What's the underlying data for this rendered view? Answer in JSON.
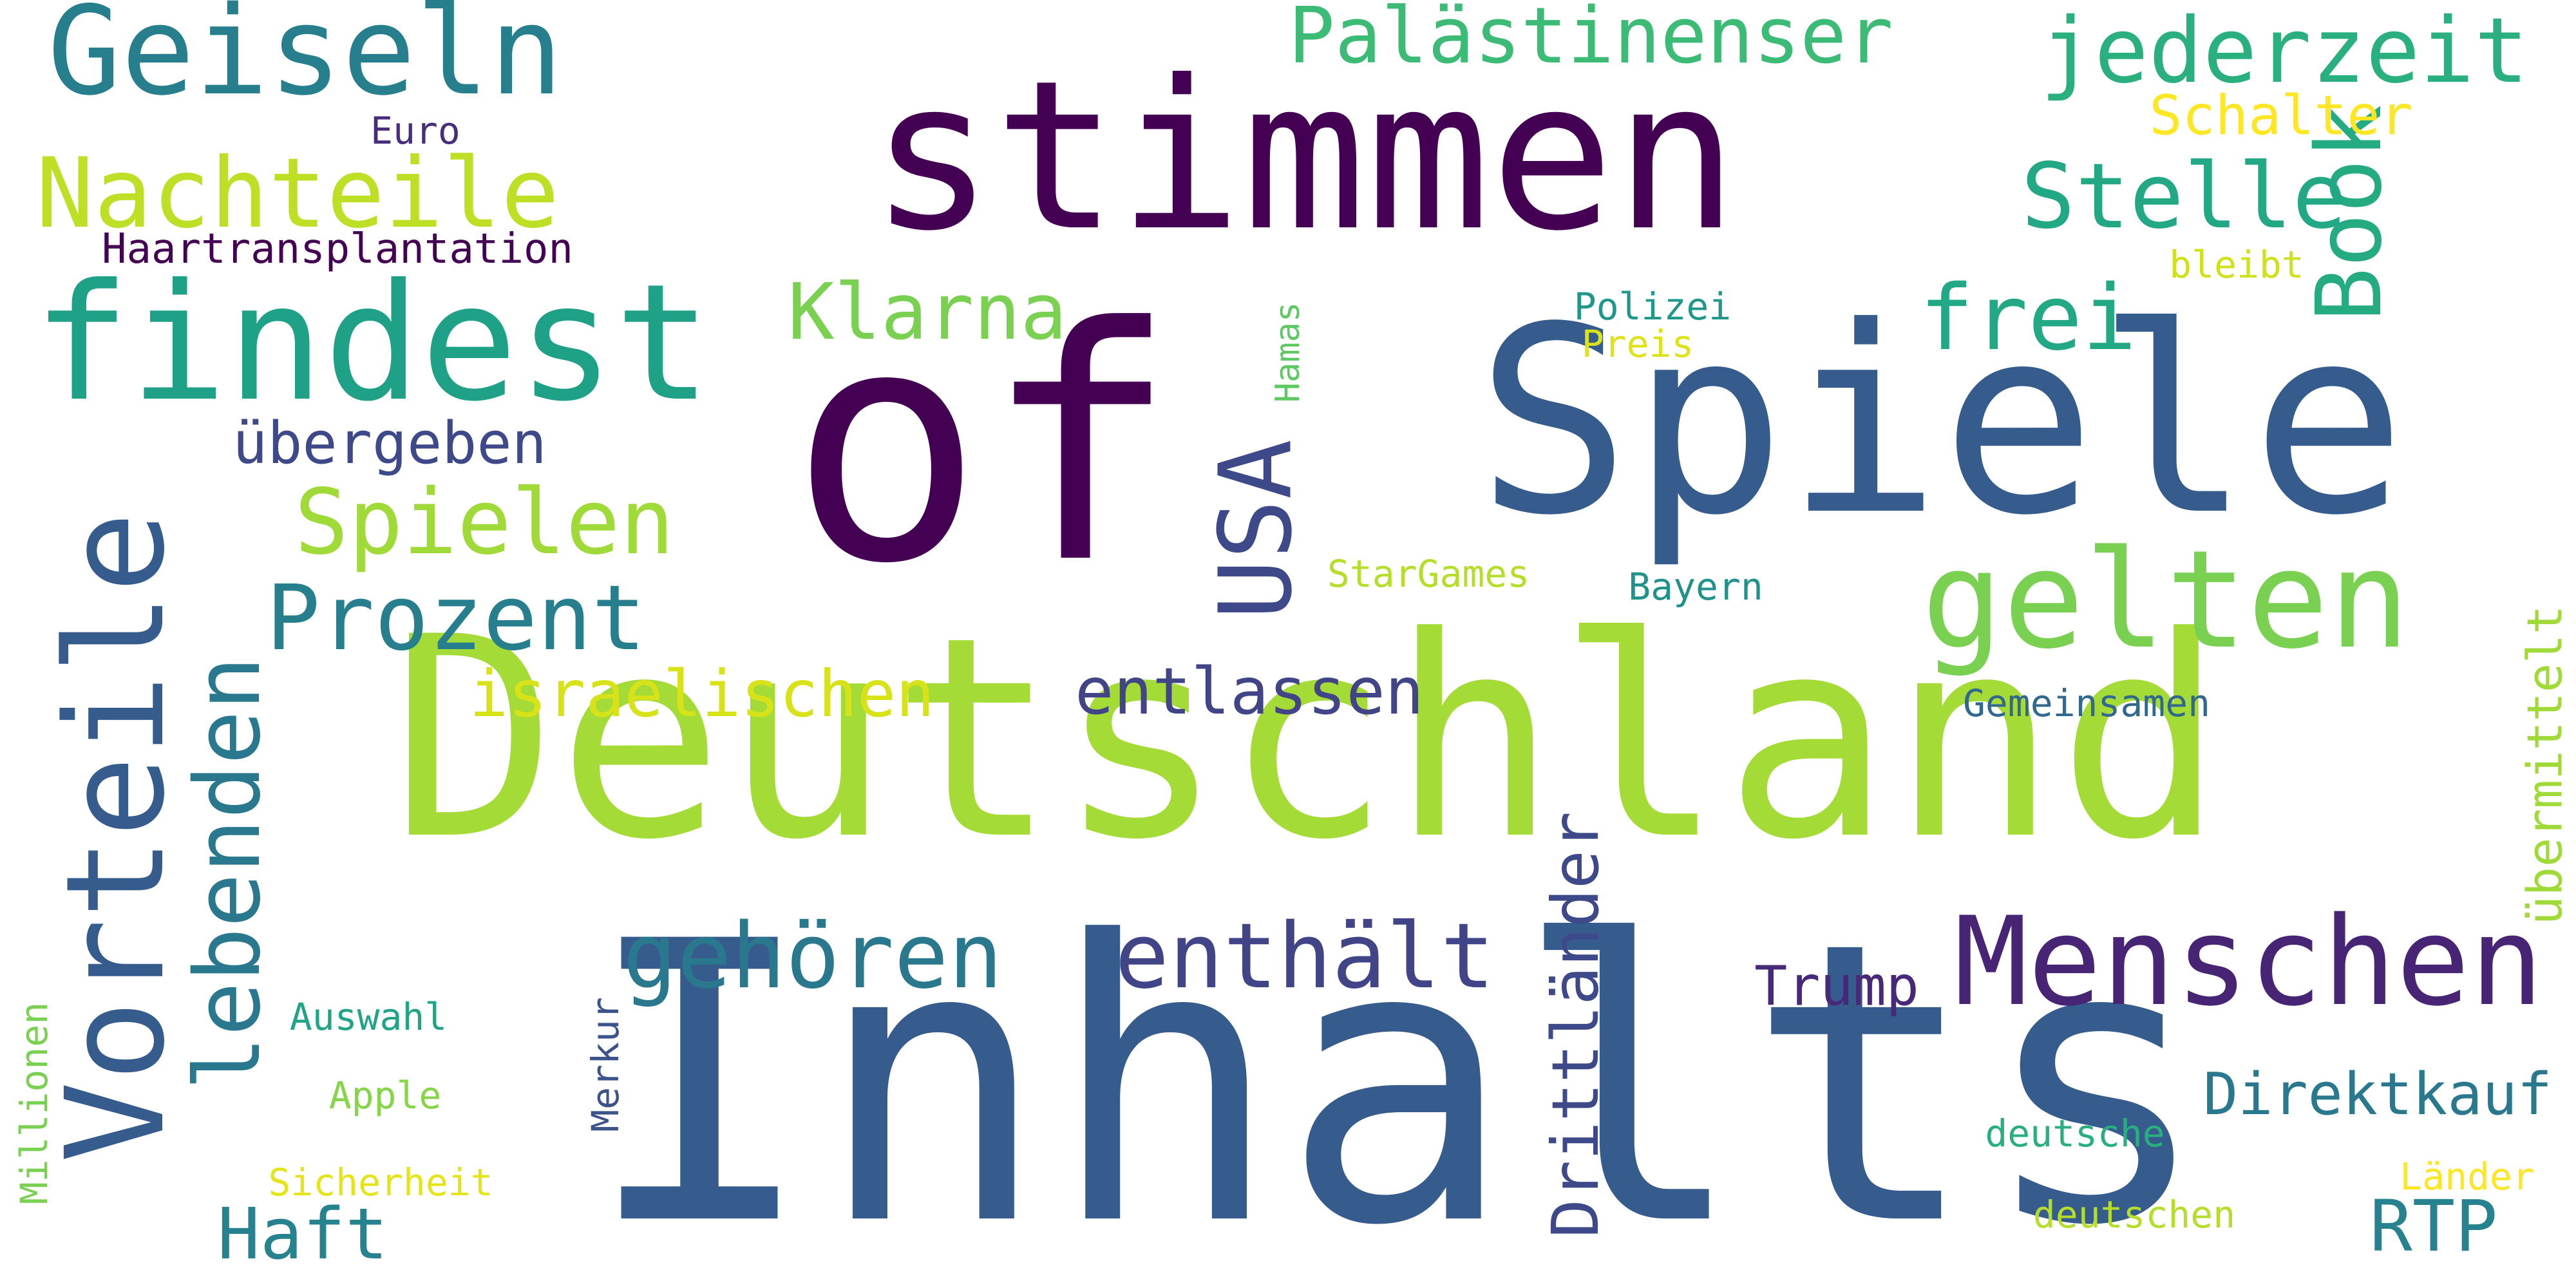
{
  "palette": {
    "background": "#ffffff",
    "dark_purple": "#440154",
    "indigo": "#46327e",
    "blue": "#365c8d",
    "teal_blue": "#277f8e",
    "teal": "#1fa187",
    "green": "#4ac16d",
    "lime": "#a0da39",
    "yellow": "#fde725"
  },
  "words": [
    {
      "text": "Inhalts",
      "color": "#365c8d"
    },
    {
      "text": "Deutschland",
      "color": "#a5db36"
    },
    {
      "text": "of",
      "color": "#440154"
    },
    {
      "text": "stimmen",
      "color": "#440154"
    },
    {
      "text": "Spiele",
      "color": "#365c8d"
    },
    {
      "text": "findest",
      "color": "#1fa187"
    },
    {
      "text": "Vorteile",
      "color": "#365c8d"
    },
    {
      "text": "Geiseln",
      "color": "#277f8e"
    },
    {
      "text": "gelten",
      "color": "#7ad151"
    },
    {
      "text": "Menschen",
      "color": "#482475"
    },
    {
      "text": "Nachteile",
      "color": "#bddf26"
    },
    {
      "text": "Spielen",
      "color": "#a0da39"
    },
    {
      "text": "Prozent",
      "color": "#277f8e"
    },
    {
      "text": "USA",
      "color": "#3e4989"
    },
    {
      "text": "enthält",
      "color": "#414487"
    },
    {
      "text": "gehören",
      "color": "#2a788e"
    },
    {
      "text": "lebenden",
      "color": "#2a788e"
    },
    {
      "text": "Book",
      "color": "#25ab82"
    },
    {
      "text": "Stelle",
      "color": "#22a884"
    },
    {
      "text": "jederzeit",
      "color": "#2ab07f"
    },
    {
      "text": "Palästinenser",
      "color": "#3bbb75"
    },
    {
      "text": "Klarna",
      "color": "#7ad151"
    },
    {
      "text": "frei",
      "color": "#22a884"
    },
    {
      "text": "israelischen",
      "color": "#d8e219"
    },
    {
      "text": "entlassen",
      "color": "#414487"
    },
    {
      "text": "Haft",
      "color": "#26828e"
    },
    {
      "text": "übergeben",
      "color": "#3e4989"
    },
    {
      "text": "Drittländer",
      "color": "#3e4989"
    },
    {
      "text": "Direktkauf",
      "color": "#2a788e"
    },
    {
      "text": "RTP",
      "color": "#26828e"
    },
    {
      "text": "Trump",
      "color": "#482878"
    },
    {
      "text": "übermittelt",
      "color": "#a0da39"
    },
    {
      "text": "Schalter",
      "color": "#fde725"
    },
    {
      "text": "Haartransplantation",
      "color": "#440154"
    },
    {
      "text": "Euro",
      "color": "#472d7b"
    },
    {
      "text": "Polizei",
      "color": "#1f988b"
    },
    {
      "text": "Preis",
      "color": "#dde318"
    },
    {
      "text": "bleibt",
      "color": "#d0e11c"
    },
    {
      "text": "Hamas",
      "color": "#5ec962"
    },
    {
      "text": "StarGames",
      "color": "#b5de2b"
    },
    {
      "text": "Bayern",
      "color": "#21918c"
    },
    {
      "text": "Gemeinsamen",
      "color": "#31688e"
    },
    {
      "text": "Auswahl",
      "color": "#20a386"
    },
    {
      "text": "Apple",
      "color": "#86d549"
    },
    {
      "text": "Sicherheit",
      "color": "#e5e419"
    },
    {
      "text": "Millionen",
      "color": "#7ad151"
    },
    {
      "text": "Merkur",
      "color": "#3b528b"
    },
    {
      "text": "deutsche",
      "color": "#29af7f"
    },
    {
      "text": "deutschen",
      "color": "#b5de2b"
    },
    {
      "text": "Länder",
      "color": "#fde725"
    }
  ]
}
